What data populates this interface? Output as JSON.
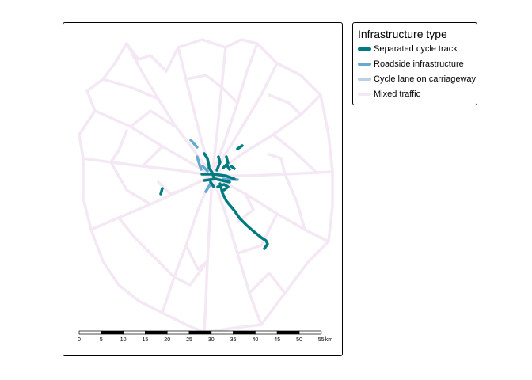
{
  "legend": {
    "title": "Infrastructure type",
    "items": [
      {
        "label": "Separated cycle track",
        "color": "#007b7f"
      },
      {
        "label": "Roadside infrastructure",
        "color": "#67a9cf"
      },
      {
        "label": "Cycle lane on carriageway",
        "color": "#bdd0e2"
      },
      {
        "label": "Mixed traffic",
        "color": "#f4e8f4"
      }
    ]
  },
  "scale_bar": {
    "ticks": [
      "0",
      "5",
      "10",
      "15",
      "20",
      "25",
      "30",
      "35",
      "40",
      "45",
      "50",
      "55"
    ],
    "unit": "km"
  }
}
